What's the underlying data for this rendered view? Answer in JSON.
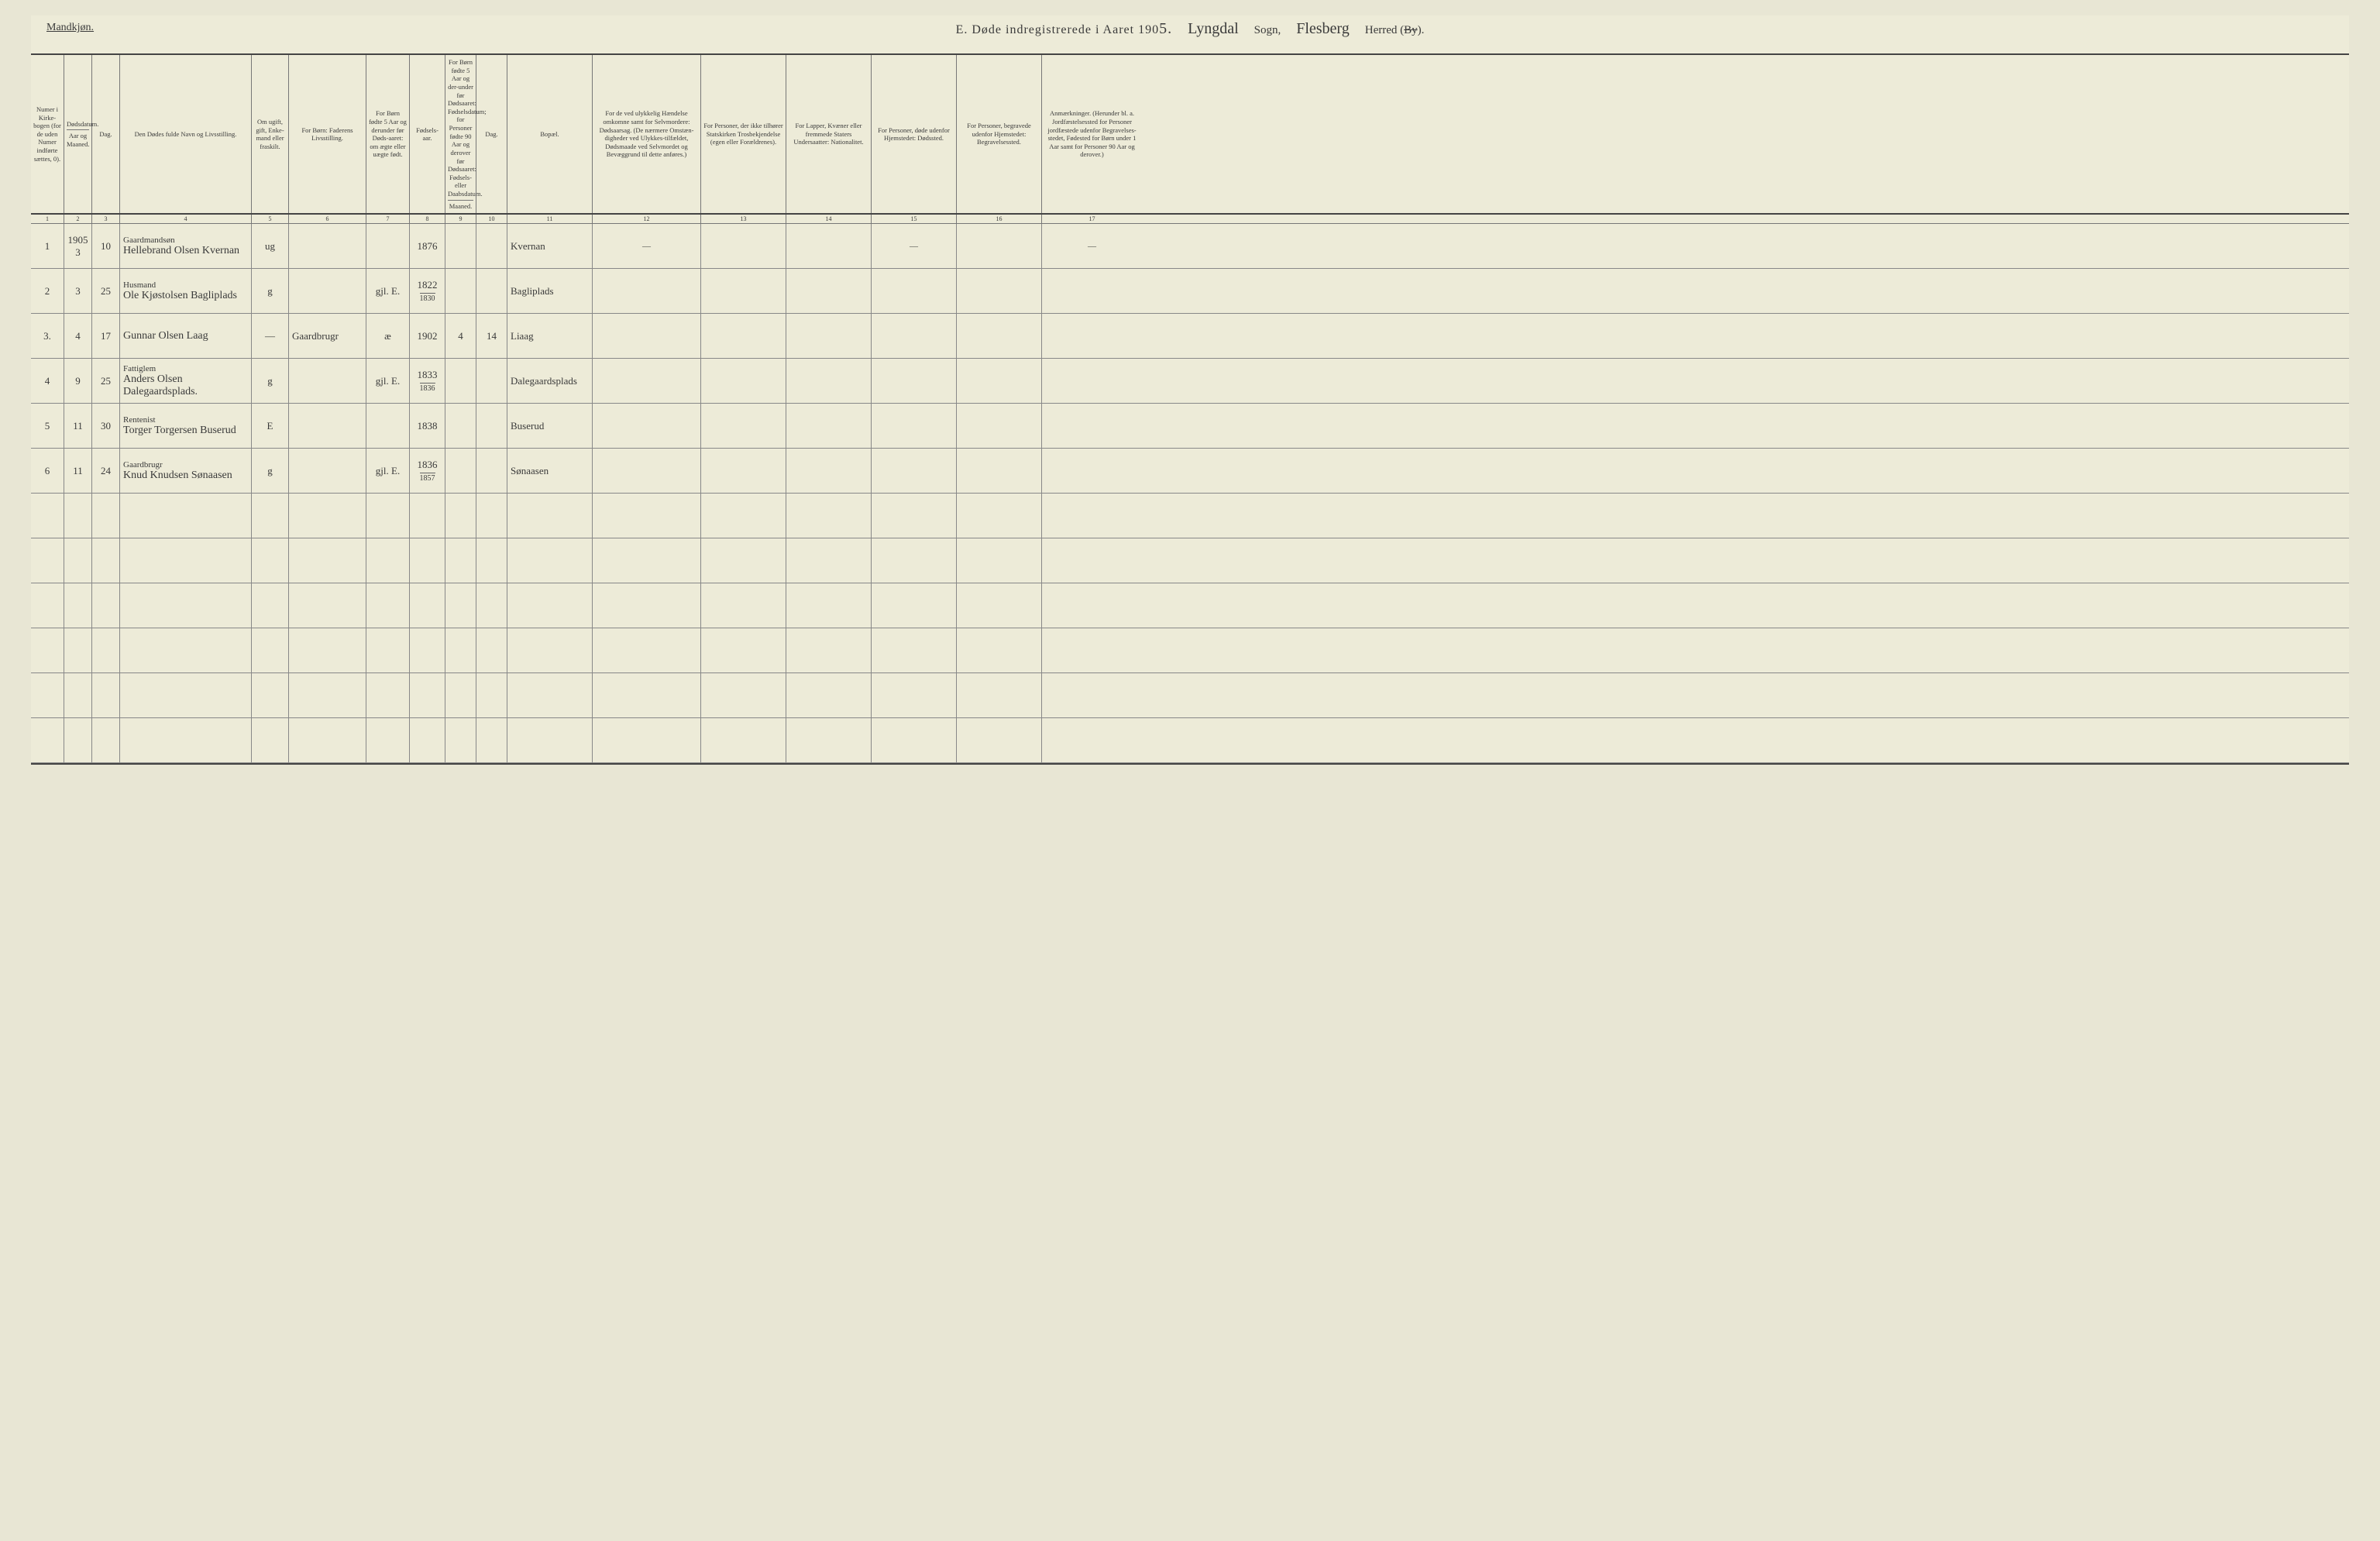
{
  "header": {
    "gender": "Mandkjøn.",
    "title_prefix": "E.  Døde indregistrerede i Aaret 190",
    "year_suffix": "5.",
    "sogn_value": "Lyngdal",
    "sogn_label": "Sogn,",
    "herred_value": "Flesberg",
    "herred_label": "Herred (",
    "herred_strike": "By",
    "herred_close": ")."
  },
  "columns": {
    "c1": "Numer i Kirke-bogen (for de uden Numer indførte sættes, 0).",
    "c2a": "Dødsdatum.",
    "c2": "Aar og Maaned.",
    "c3": "Dag.",
    "c4": "Den Dødes fulde Navn og Livsstilling.",
    "c5": "Om ugift, gift, Enke-mand eller fraskilt.",
    "c6": "For Børn: Faderens Livsstilling.",
    "c7": "For Børn fødte 5 Aar og derunder før Døds-aaret: om ægte eller uægte født.",
    "c8": "Fødsels-aar.",
    "c9a": "For Børn fødte 5 Aar og der-under før Dødsaaret: Fødselsdatum; for Personer fødte 90 Aar og derover før Dødsaaret: Fødsels- eller Daabsdatum.",
    "c9": "Maaned.",
    "c10": "Dag.",
    "c11": "Bopæl.",
    "c12": "For de ved ulykkelig Hændelse omkomne samt for Selvmordere: Dødsaarsag. (De nærmere Omstæn-digheder ved Ulykkes-tilfældet, Dødsmaade ved Selvmordet og Bevæggrund til dette anføres.)",
    "c13": "For Personer, der ikke tilhører Statskirken Trosbekjendelse (egen eller Forældrenes).",
    "c14": "For Lapper, Kvæner eller fremmede Staters Undersaatter: Nationalitet.",
    "c15": "For Personer, døde udenfor Hjemstedet: Dødssted.",
    "c16": "For Personer, begravede udenfor Hjemstedet: Begravelsessted.",
    "c17": "Anmærkninger. (Herunder bl. a. Jordfæstelsessted for Personer jordfæstede udenfor Begravelses-stedet, Fødested for Børn under 1 Aar samt for Personer 90 Aar og derover.)"
  },
  "colnums": [
    "1",
    "2",
    "3",
    "4",
    "5",
    "6",
    "7",
    "8",
    "9",
    "10",
    "11",
    "12",
    "13",
    "14",
    "15",
    "16",
    "17"
  ],
  "rows": [
    {
      "num": "1",
      "year_month": "1905\n3",
      "day": "10",
      "occ": "Gaardmandsøn",
      "name": "Hellebrand Olsen Kvernan",
      "status": "ug",
      "father": "",
      "legit": "",
      "birth_year": "1876",
      "bm": "",
      "bd": "",
      "place": "Kvernan",
      "c12": "—",
      "c13": "",
      "c14": "",
      "c15": "—",
      "c16": "",
      "c17": "—"
    },
    {
      "num": "2",
      "year_month": "3",
      "day": "25",
      "occ": "Husmand",
      "name": "Ole Kjøstolsen Bagliplads",
      "status": "g",
      "father": "",
      "legit": "gjl. E.",
      "birth_year": "1822",
      "birth_sub": "1830",
      "bm": "",
      "bd": "",
      "place": "Bagliplads",
      "c12": "",
      "c13": "",
      "c14": "",
      "c15": "",
      "c16": "",
      "c17": ""
    },
    {
      "num": "3.",
      "year_month": "4",
      "day": "17",
      "occ": "",
      "name": "Gunnar Olsen Laag",
      "status": "—",
      "father": "Gaardbrugr",
      "legit": "æ",
      "birth_year": "1902",
      "bm": "4",
      "bd": "14",
      "place": "Liaag",
      "c12": "",
      "c13": "",
      "c14": "",
      "c15": "",
      "c16": "",
      "c17": ""
    },
    {
      "num": "4",
      "year_month": "9",
      "day": "25",
      "occ": "Fattiglem",
      "name": "Anders Olsen Dalegaardsplads.",
      "status": "g",
      "father": "",
      "legit": "gjl. E.",
      "birth_year": "1833",
      "birth_sub": "1836",
      "bm": "",
      "bd": "",
      "place": "Dalegaardsplads",
      "c12": "",
      "c13": "",
      "c14": "",
      "c15": "",
      "c16": "",
      "c17": ""
    },
    {
      "num": "5",
      "year_month": "11",
      "day": "30",
      "occ": "Rentenist",
      "name": "Torger Torgersen Buserud",
      "status": "E",
      "father": "",
      "legit": "",
      "birth_year": "1838",
      "bm": "",
      "bd": "",
      "place": "Buserud",
      "c12": "",
      "c13": "",
      "c14": "",
      "c15": "",
      "c16": "",
      "c17": ""
    },
    {
      "num": "6",
      "year_month": "11",
      "day": "24",
      "occ": "Gaardbrugr",
      "name": "Knud Knudsen Sønaasen",
      "status": "g",
      "father": "",
      "legit": "gjl. E.",
      "birth_year": "1836",
      "birth_sub": "1857",
      "bm": "",
      "bd": "",
      "place": "Sønaasen",
      "c12": "",
      "c13": "",
      "c14": "",
      "c15": "",
      "c16": "",
      "c17": ""
    }
  ],
  "blank_rows": 6
}
